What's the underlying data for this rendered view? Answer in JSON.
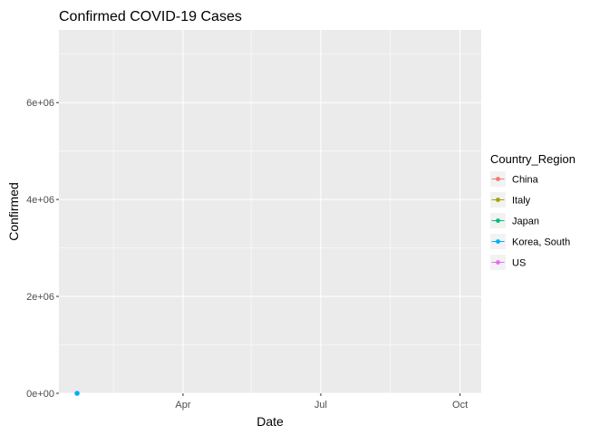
{
  "chart_data": {
    "type": "line",
    "title": "Confirmed COVID-19 Cases",
    "xlabel": "Date",
    "ylabel": "Confirmed",
    "x_ticks": [
      "Apr",
      "Jul",
      "Oct"
    ],
    "y_ticks": [
      "0e+00",
      "2e+06",
      "4e+06",
      "6e+06"
    ],
    "ylim": [
      0,
      7500000
    ],
    "xlim": [
      "2020-01-10",
      "2020-10-15"
    ],
    "grid": true,
    "background": "#EBEBEB",
    "legend": {
      "title": "Country_Region",
      "placement": "right"
    },
    "series": [
      {
        "name": "China",
        "color": "#F8766D",
        "points": []
      },
      {
        "name": "Italy",
        "color": "#A3A500",
        "points": []
      },
      {
        "name": "Japan",
        "color": "#00BF7D",
        "points": []
      },
      {
        "name": "Korea, South",
        "color": "#00B0F6",
        "points": [
          {
            "x": "2020-01-22",
            "y": 1
          }
        ]
      },
      {
        "name": "US",
        "color": "#E76BF3",
        "points": []
      }
    ]
  }
}
